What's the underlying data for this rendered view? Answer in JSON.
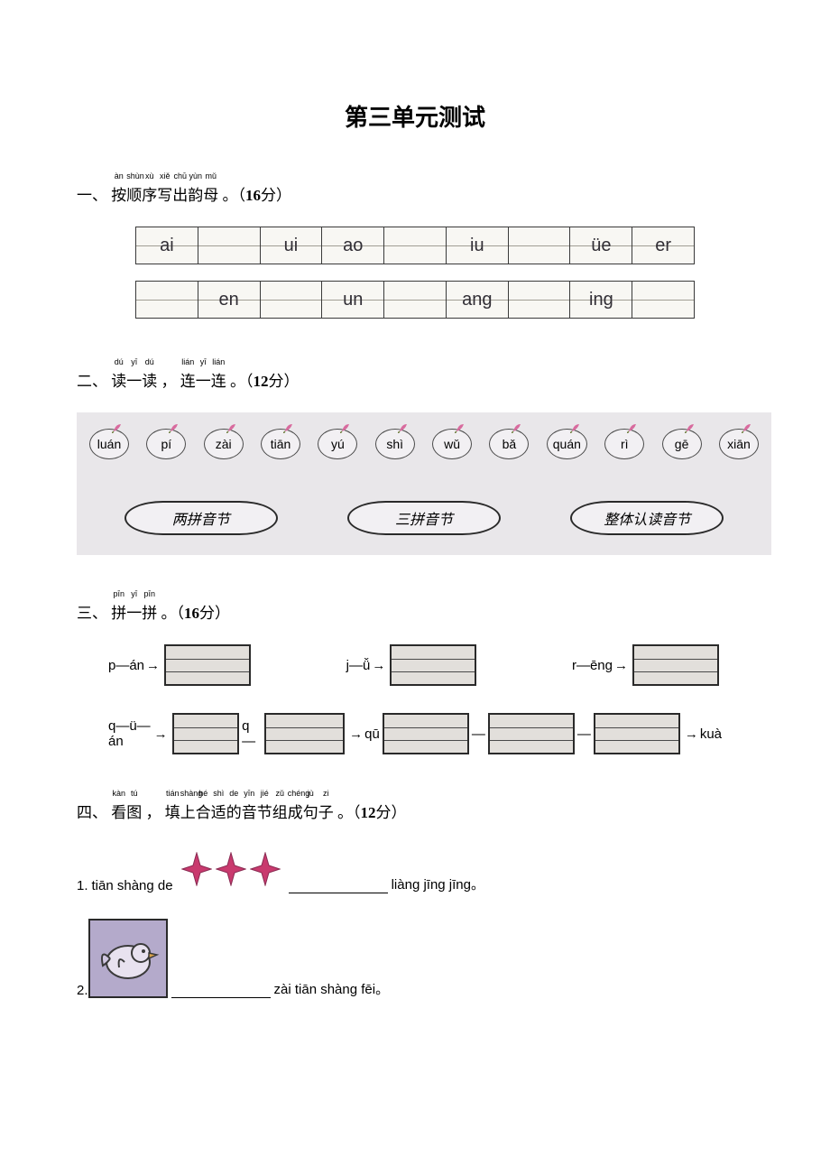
{
  "title": "第三单元测试",
  "q1": {
    "number": "一、",
    "ruby_parts": [
      {
        "char": "按",
        "anno": "àn"
      },
      {
        "char": "顺",
        "anno": "shùn"
      },
      {
        "char": "序",
        "anno": "xù"
      },
      {
        "char": "写",
        "anno": "xiě"
      },
      {
        "char": "出",
        "anno": "chū"
      },
      {
        "char": "韵",
        "anno": "yùn"
      },
      {
        "char": "母",
        "anno": "mǔ"
      }
    ],
    "tail": "。（",
    "points": "16",
    "tail2": "分）",
    "row1": [
      "ai",
      "",
      "ui",
      "ao",
      "",
      "iu",
      "",
      "üe",
      "er"
    ],
    "row2": [
      "",
      "en",
      "",
      "un",
      "",
      "ang",
      "",
      "ing",
      ""
    ]
  },
  "q2": {
    "number": "二、",
    "ruby_parts": [
      {
        "char": "读",
        "anno": "dú"
      },
      {
        "char": "一",
        "anno": "yī"
      },
      {
        "char": "读",
        "anno": "dú"
      }
    ],
    "mid": "，",
    "ruby_parts2": [
      {
        "char": "连",
        "anno": "lián"
      },
      {
        "char": "一",
        "anno": "yī"
      },
      {
        "char": "连",
        "anno": "lián"
      }
    ],
    "tail": "。（",
    "points": "12",
    "tail2": "分）",
    "syllables": [
      "luán",
      "pí",
      "zài",
      "tiān",
      "yú",
      "shì",
      "wǔ",
      "bǎ",
      "quán",
      "rì",
      "gē",
      "xiān"
    ],
    "categories": [
      "两拼音节",
      "三拼音节",
      "整体认读音节"
    ]
  },
  "q3": {
    "number": "三、",
    "ruby_parts": [
      {
        "char": "拼",
        "anno": "pīn"
      },
      {
        "char": "一",
        "anno": "yī"
      },
      {
        "char": "拼",
        "anno": "pīn"
      }
    ],
    "tail": "。（",
    "points": "16",
    "tail2": "分）",
    "row1": [
      {
        "pre": "p—án",
        "arrow": "→",
        "box_after": true
      },
      {
        "pre": "j—ǚ",
        "arrow": "→",
        "box_after": true
      },
      {
        "pre": "r—ēng",
        "arrow": "→",
        "box_after": true
      }
    ],
    "row2": [
      {
        "pre": "q—ü—án",
        "arrow": "→",
        "box_after": true
      },
      {
        "pre": "q—",
        "box_after_pre": true,
        "arrow": "→",
        "post": "qū"
      },
      {
        "box_before": true,
        "dash": "—",
        "box_mid": true,
        "dash2": "—",
        "box_mid2": true,
        "arrow": "→",
        "post": "kuà"
      }
    ]
  },
  "q4": {
    "number": "四、",
    "ruby_parts": [
      {
        "char": "看",
        "anno": "kàn"
      },
      {
        "char": "图",
        "anno": "tú"
      }
    ],
    "mid": "，",
    "ruby_parts2": [
      {
        "char": "填",
        "anno": "tián"
      },
      {
        "char": "上",
        "anno": "shàng"
      },
      {
        "char": "合",
        "anno": "hé"
      },
      {
        "char": "适",
        "anno": "shì"
      },
      {
        "char": "的",
        "anno": "de"
      },
      {
        "char": "音",
        "anno": "yīn"
      },
      {
        "char": "节",
        "anno": "jié"
      },
      {
        "char": "组",
        "anno": "zǔ"
      },
      {
        "char": "成",
        "anno": "chéng"
      },
      {
        "char": "句",
        "anno": "jù"
      },
      {
        "char": "子",
        "anno": "zi"
      }
    ],
    "tail": "。（",
    "points": "12",
    "tail2": "分）",
    "item1_num": "1.",
    "item1_pre": "tiān shàng de",
    "item1_post": "liàng jīng jīng。",
    "item2_num": "2.",
    "item2_post": "zài tiān shàng fēi。"
  },
  "colors": {
    "leaf_fill": "#d86b9e",
    "leaf_stem": "#6b7a3a",
    "star_fill": "#c93a6e",
    "star_shadow": "#8a2a52",
    "bird_body": "#e8e2ef",
    "bird_outline": "#3a3a3a"
  }
}
